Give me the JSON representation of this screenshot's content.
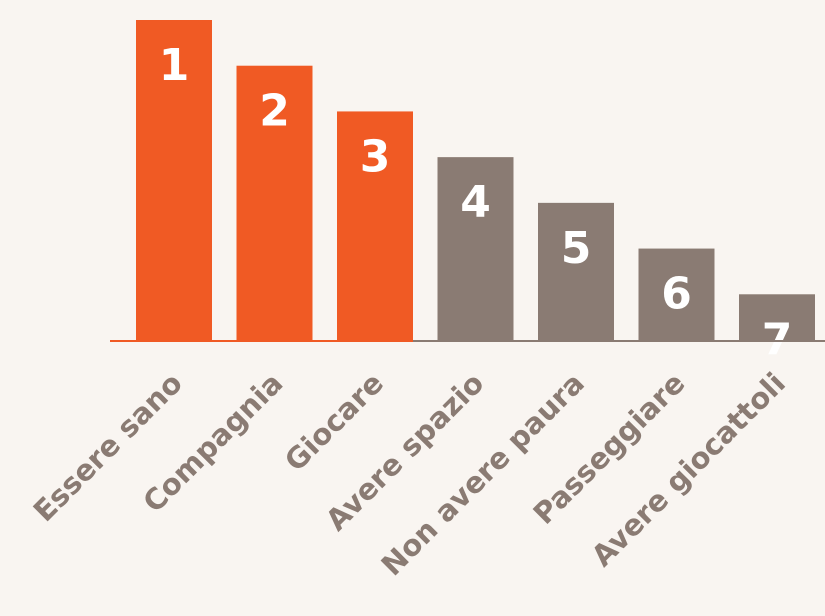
{
  "chart_data": {
    "type": "bar",
    "categories": [
      "Essere sano",
      "Compagnia",
      "Giocare",
      "Avere spazio",
      "Non avere paura",
      "Passeggiare",
      "Avere giocattoli"
    ],
    "values": [
      7,
      6,
      5,
      4,
      3,
      2,
      1
    ],
    "data_labels": [
      "1",
      "2",
      "3",
      "4",
      "5",
      "6",
      "7"
    ],
    "highlighted_count": 3,
    "ylim": [
      0,
      7
    ],
    "title": "",
    "xlabel": "",
    "ylabel": "",
    "grid": false,
    "legend": "none",
    "colors": {
      "highlight": "#f05a24",
      "normal": "#8a7b73",
      "background": "#f9f5f1",
      "bar_text": "#ffffff",
      "label_text": "#8a7b73"
    }
  }
}
